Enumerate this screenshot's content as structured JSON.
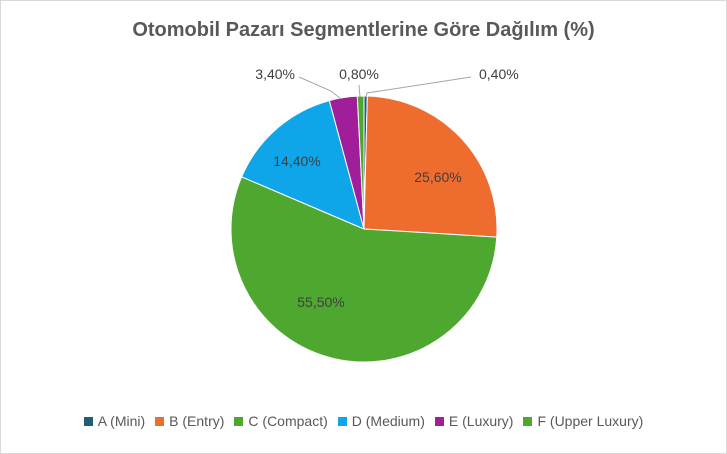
{
  "chart_data": {
    "type": "pie",
    "title": "Otomobil Pazarı Segmentlerine Göre Dağılım (%)",
    "categories": [
      "A (Mini)",
      "B (Entry)",
      "C (Compact)",
      "D (Medium)",
      "E (Luxury)",
      "F (Upper Luxury)"
    ],
    "values": [
      0.4,
      25.6,
      55.5,
      14.4,
      3.4,
      0.8
    ],
    "data_labels": [
      "0,40%",
      "25,60%",
      "55,50%",
      "14,40%",
      "3,40%",
      "0,80%"
    ],
    "colors": [
      "#1f5f7a",
      "#ef6c2f",
      "#4ea72e",
      "#0ea5e9",
      "#a01e9a",
      "#4ea72e"
    ],
    "legend_position": "bottom"
  }
}
